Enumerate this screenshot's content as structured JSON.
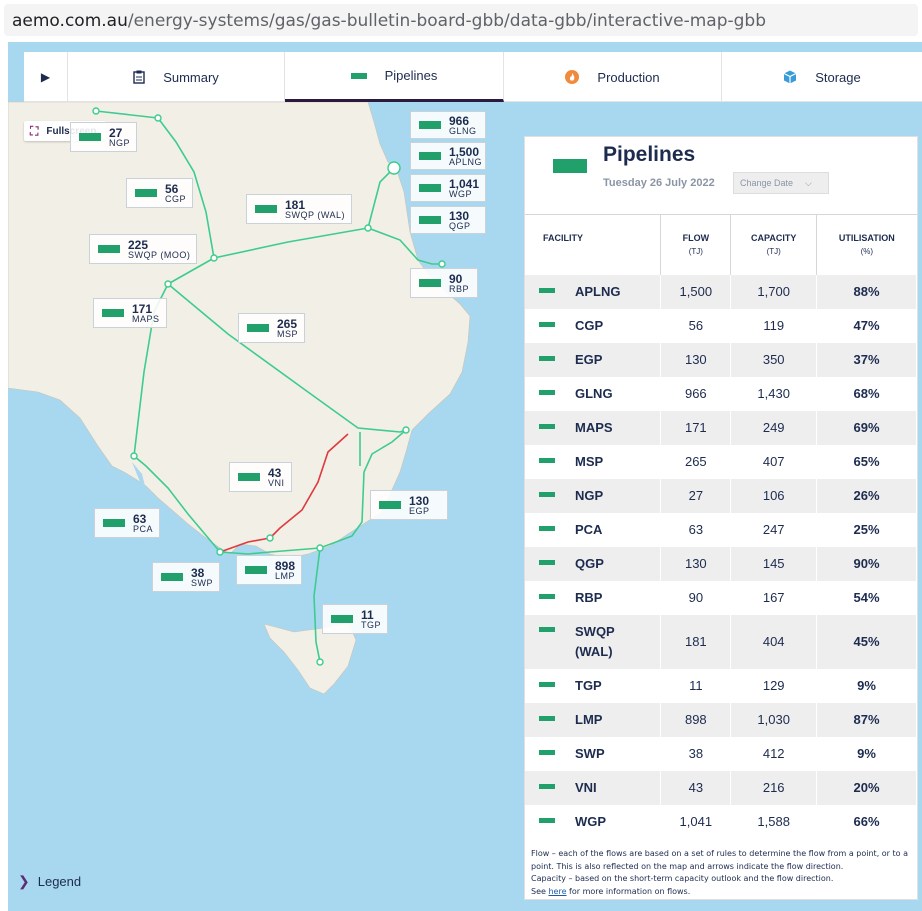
{
  "browser": {
    "url_host": "aemo.com.au",
    "url_path": "/energy-systems/gas/gas-bulletin-board-gbb/data-gbb/interactive-map-gbb"
  },
  "tabs": {
    "play_icon": "play-icon",
    "items": [
      {
        "label": "Summary",
        "icon": "clipboard-icon",
        "active": false
      },
      {
        "label": "Pipelines",
        "icon": "pipeline-swatch-icon",
        "active": true
      },
      {
        "label": "Production",
        "icon": "flame-icon",
        "active": false
      },
      {
        "label": "Storage",
        "icon": "storage-icon",
        "active": false
      }
    ]
  },
  "map": {
    "fullscreen_label": "Fullscreen",
    "legend_label": "Legend",
    "labels": [
      {
        "flow": "27",
        "code": "NGP"
      },
      {
        "flow": "56",
        "code": "CGP"
      },
      {
        "flow": "181",
        "code": "SWQP (WAL)"
      },
      {
        "flow": "225",
        "code": "SWQP (MOO)"
      },
      {
        "flow": "171",
        "code": "MAPS"
      },
      {
        "flow": "265",
        "code": "MSP"
      },
      {
        "flow": "966",
        "code": "GLNG"
      },
      {
        "flow": "1,500",
        "code": "APLNG"
      },
      {
        "flow": "1,041",
        "code": "WGP"
      },
      {
        "flow": "130",
        "code": "QGP"
      },
      {
        "flow": "90",
        "code": "RBP"
      },
      {
        "flow": "43",
        "code": "VNI"
      },
      {
        "flow": "130",
        "code": "EGP"
      },
      {
        "flow": "63",
        "code": "PCA"
      },
      {
        "flow": "38",
        "code": "SWP"
      },
      {
        "flow": "898",
        "code": "LMP"
      },
      {
        "flow": "11",
        "code": "TGP"
      }
    ],
    "colors": {
      "pipeline": "#3dcc8f",
      "interconnect": "#e0393e",
      "swatch": "#22a06b",
      "land": "#f2efe6",
      "water": "#a8d8ef"
    }
  },
  "panel": {
    "title": "Pipelines",
    "date": "Tuesday 26 July 2022",
    "change_date_label": "Change Date",
    "headers": {
      "facility": "FACILITY",
      "flow": "FLOW",
      "flow_unit": "(TJ)",
      "capacity": "CAPACITY",
      "capacity_unit": "(TJ)",
      "utilisation": "UTILISATION",
      "utilisation_unit": "(%)"
    },
    "rows": [
      {
        "facility": "APLNG",
        "flow": "1,500",
        "capacity": "1,700",
        "utilisation": "88%"
      },
      {
        "facility": "CGP",
        "flow": "56",
        "capacity": "119",
        "utilisation": "47%"
      },
      {
        "facility": "EGP",
        "flow": "130",
        "capacity": "350",
        "utilisation": "37%"
      },
      {
        "facility": "GLNG",
        "flow": "966",
        "capacity": "1,430",
        "utilisation": "68%"
      },
      {
        "facility": "MAPS",
        "flow": "171",
        "capacity": "249",
        "utilisation": "69%"
      },
      {
        "facility": "MSP",
        "flow": "265",
        "capacity": "407",
        "utilisation": "65%"
      },
      {
        "facility": "NGP",
        "flow": "27",
        "capacity": "106",
        "utilisation": "26%"
      },
      {
        "facility": "PCA",
        "flow": "63",
        "capacity": "247",
        "utilisation": "25%"
      },
      {
        "facility": "QGP",
        "flow": "130",
        "capacity": "145",
        "utilisation": "90%"
      },
      {
        "facility": "RBP",
        "flow": "90",
        "capacity": "167",
        "utilisation": "54%"
      },
      {
        "facility": "SWQP (WAL)",
        "flow": "181",
        "capacity": "404",
        "utilisation": "45%"
      },
      {
        "facility": "TGP",
        "flow": "11",
        "capacity": "129",
        "utilisation": "9%"
      },
      {
        "facility": "LMP",
        "flow": "898",
        "capacity": "1,030",
        "utilisation": "87%"
      },
      {
        "facility": "SWP",
        "flow": "38",
        "capacity": "412",
        "utilisation": "9%"
      },
      {
        "facility": "VNI",
        "flow": "43",
        "capacity": "216",
        "utilisation": "20%"
      },
      {
        "facility": "WGP",
        "flow": "1,041",
        "capacity": "1,588",
        "utilisation": "66%"
      }
    ],
    "notes": {
      "flow_note": "Flow – each of the flows are based on a set of rules to determine the flow from a point, or to a point. This is also reflected on the map and arrows indicate the flow direction.",
      "capacity_note": "Capacity – based on the short-term capacity outlook and the flow direction.",
      "see_prefix": "See",
      "link_text": "here",
      "see_suffix": "for more information on flows."
    }
  }
}
